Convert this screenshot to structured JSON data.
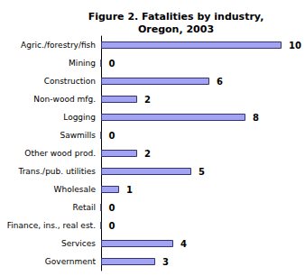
{
  "chart_data": {
    "type": "bar",
    "orientation": "horizontal",
    "title": "Figure 2. Fatalities by industry,\nOregon, 2003",
    "categories": [
      "Agric./forestry/fish",
      "Mining",
      "Construction",
      "Non-wood mfg.",
      "Logging",
      "Sawmills",
      "Other wood prod.",
      "Trans./pub. utilities",
      "Wholesale",
      "Retail",
      "Finance, ins., real est.",
      "Services",
      "Government"
    ],
    "values": [
      10,
      0,
      6,
      2,
      8,
      0,
      2,
      5,
      1,
      0,
      0,
      4,
      3
    ],
    "color": "#a3a3f5",
    "xlim": [
      0,
      10
    ],
    "data_labels": true,
    "tick_labels": "y",
    "grid": false
  }
}
